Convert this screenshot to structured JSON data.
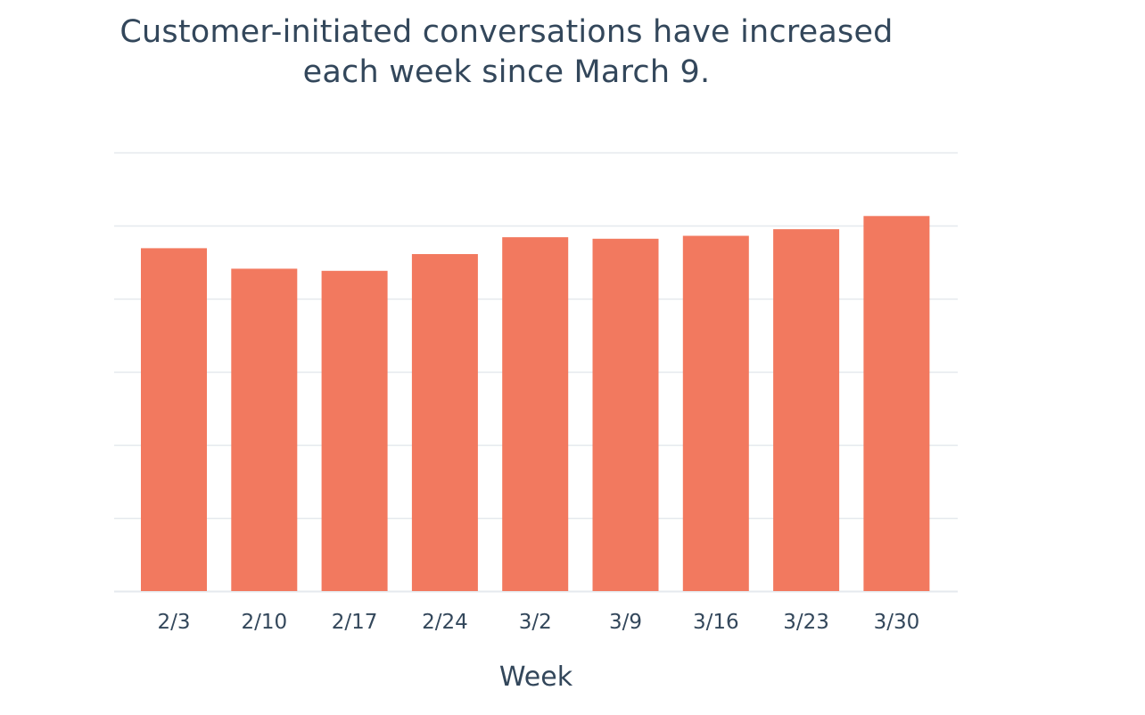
{
  "chart_data": {
    "type": "bar",
    "title_lines": [
      "Customer-initiated conversations have increased",
      "each week since March 9."
    ],
    "xlabel": "Week",
    "ylabel": "",
    "categories": [
      "2/3",
      "2/10",
      "2/17",
      "2/24",
      "3/2",
      "3/9",
      "3/16",
      "3/23",
      "3/30"
    ],
    "values": [
      4.69,
      4.41,
      4.38,
      4.61,
      4.84,
      4.82,
      4.86,
      4.95,
      5.13
    ],
    "ylim": [
      0,
      6
    ],
    "gridlines": 6,
    "grid": true,
    "y_tick_labels_shown": false,
    "bar_color": "#f2795f",
    "grid_color": "#e5e9ee",
    "text_color": "#33475b"
  }
}
